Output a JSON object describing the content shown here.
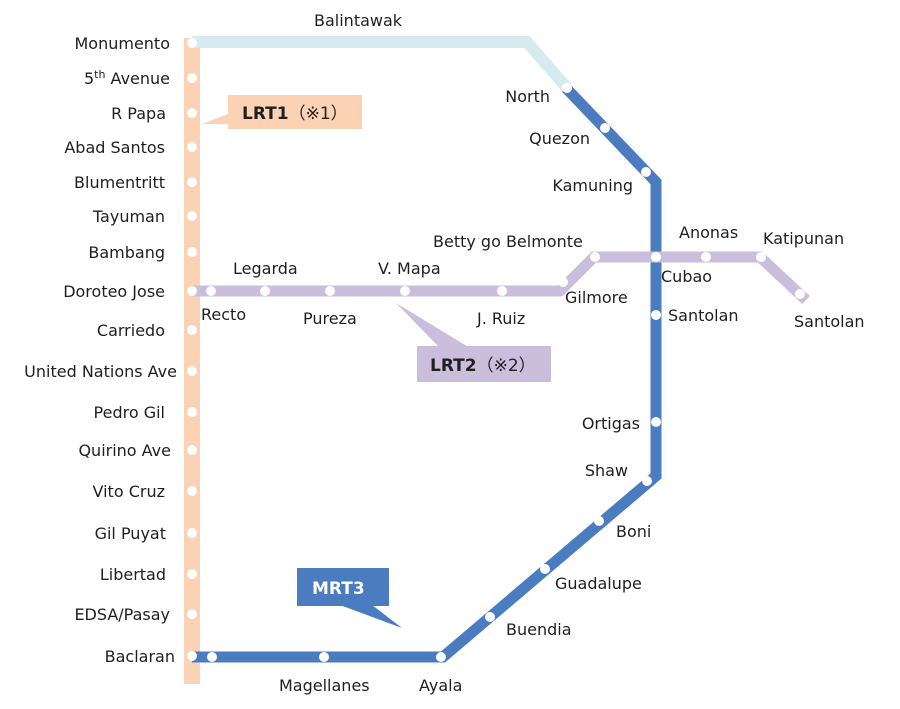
{
  "colors": {
    "lrt1": "#fbd3b4",
    "lrt1_extension": "#d5ebf0",
    "lrt2": "#cbbedc",
    "mrt3": "#4a7cbf",
    "mrt3_label_bg": "#4a7cbf",
    "lrt1_label_bg": "#fbd3b4",
    "lrt2_label_bg": "#cbbedc",
    "station_dot": "#ffffff",
    "text": "#1f1f1f"
  },
  "lines": {
    "lrt1": {
      "label_main": "LRT1",
      "label_note": "（※1）"
    },
    "lrt2": {
      "label_main": "LRT2",
      "label_note": "（※2）"
    },
    "mrt3": {
      "label_main": "MRT3"
    }
  },
  "stations": {
    "balintawak": "Balintawak",
    "monumento": "Monumento",
    "fifth_avenue_base": "5",
    "fifth_avenue_sup": "th",
    "fifth_avenue_rest": " Avenue",
    "r_papa": "R Papa",
    "abad_santos": "Abad Santos",
    "blumentritt": "Blumentritt",
    "tayuman": "Tayuman",
    "bambang": "Bambang",
    "doroteo_jose": "Doroteo Jose",
    "carriedo": "Carriedo",
    "united_nations": "United Nations Ave",
    "pedro_gil": "Pedro Gil",
    "quirino": "Quirino Ave",
    "vito_cruz": "Vito Cruz",
    "gil_puyat": "Gil Puyat",
    "libertad": "Libertad",
    "edsa_pasay": "EDSA/Pasay",
    "baclaran": "Baclaran",
    "north": "North",
    "quezon": "Quezon",
    "kamuning": "Kamuning",
    "cubao": "Cubao",
    "santolan_mrt": "Santolan",
    "ortigas": "Ortigas",
    "shaw": "Shaw",
    "boni": "Boni",
    "guadalupe": "Guadalupe",
    "buendia": "Buendia",
    "ayala": "Ayala",
    "magellanes": "Magellanes",
    "recto": "Recto",
    "legarda": "Legarda",
    "pureza": "Pureza",
    "v_mapa": "V. Mapa",
    "j_ruiz": "J. Ruiz",
    "gilmore": "Gilmore",
    "betty_go": "Betty go Belmonte",
    "anonas": "Anonas",
    "katipunan": "Katipunan",
    "santolan_lrt2": "Santolan"
  }
}
